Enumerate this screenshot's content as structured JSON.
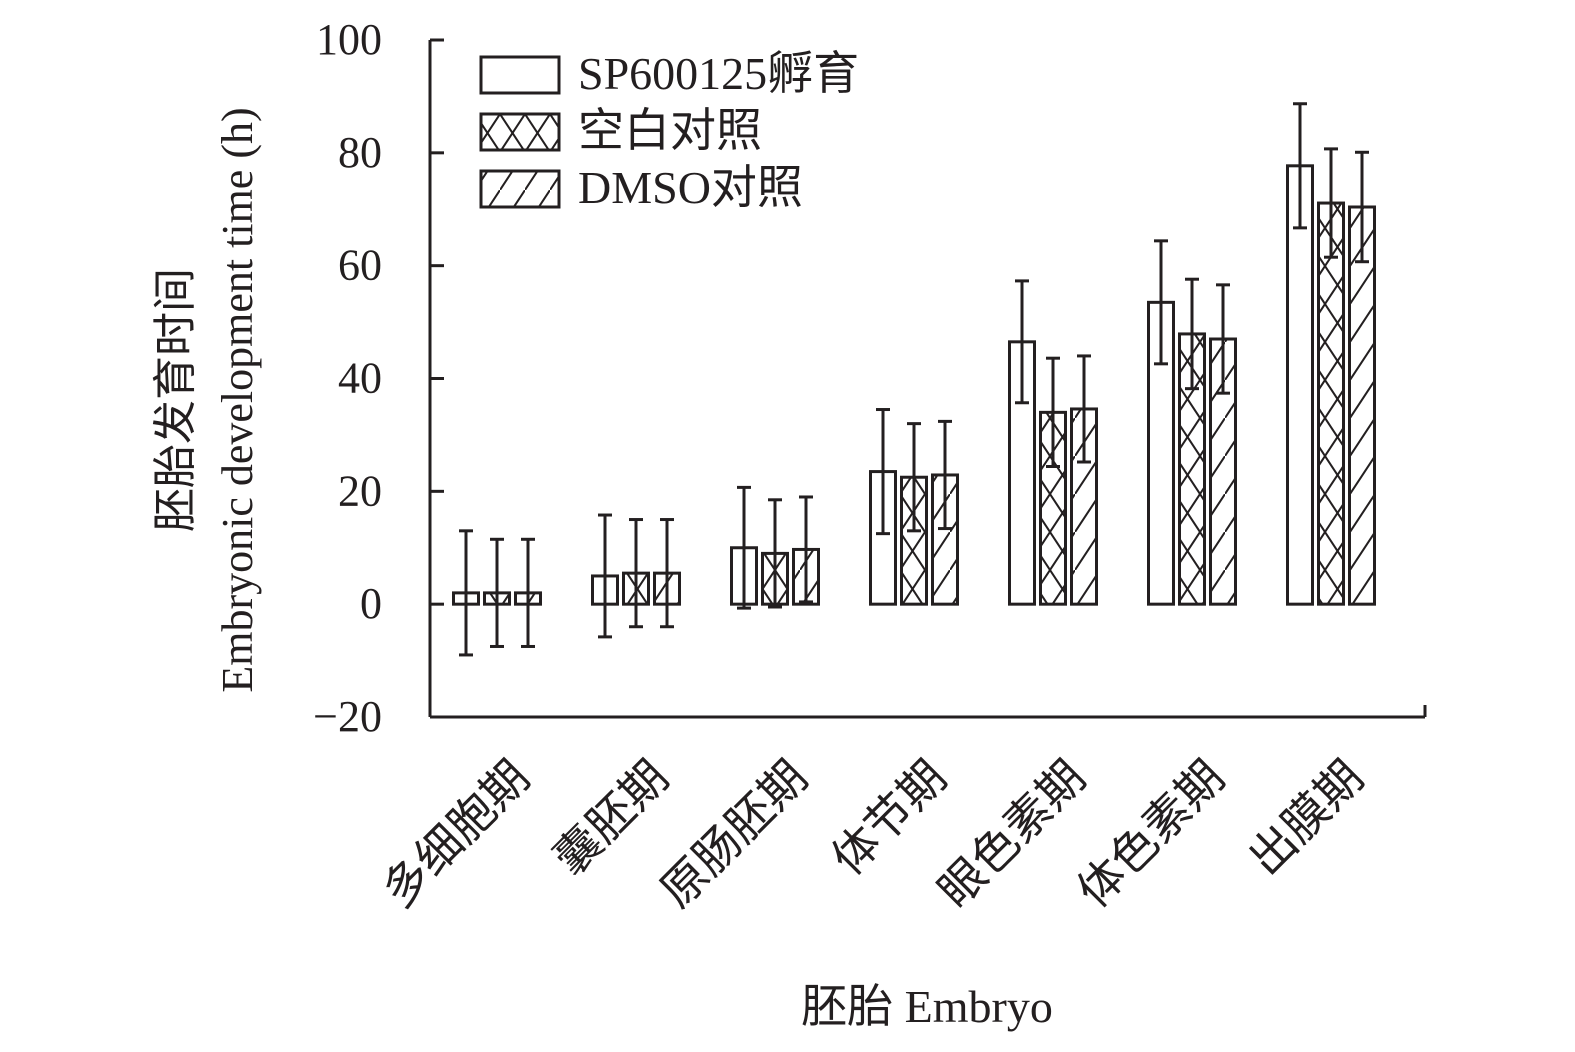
{
  "chart_data": {
    "type": "bar",
    "title": "",
    "xlabel": "胚胎 Embryo",
    "ylabel_cn": "胚胎发育时间",
    "ylabel_en": "Embryonic development time (h)",
    "ylim": [
      -20,
      100
    ],
    "yticks": [
      -20,
      0,
      20,
      40,
      60,
      80,
      100
    ],
    "legend_position": "top-left",
    "categories": [
      "多细胞期",
      "囊胚期",
      "原肠胚期",
      "体节期",
      "眼色素期",
      "体色素期",
      "出膜期"
    ],
    "series": [
      {
        "name": "SP600125孵育",
        "pattern": "none",
        "values": [
          2,
          5,
          10,
          23.5,
          46.5,
          53.5,
          77.7
        ],
        "errors": [
          11,
          10.8,
          10.7,
          11,
          10.8,
          10.9,
          11
        ]
      },
      {
        "name": "空白对照",
        "pattern": "crosshatch",
        "values": [
          2,
          5.5,
          9,
          22.5,
          34,
          47.9,
          71.1
        ],
        "errors": [
          9.5,
          9.5,
          9.5,
          9.5,
          9.6,
          9.7,
          9.6
        ]
      },
      {
        "name": "DMSO对照",
        "pattern": "diagonal",
        "values": [
          2,
          5.5,
          9.7,
          22.9,
          34.6,
          47,
          70.4
        ],
        "errors": [
          9.5,
          9.5,
          9.3,
          9.5,
          9.4,
          9.6,
          9.7
        ]
      }
    ]
  }
}
